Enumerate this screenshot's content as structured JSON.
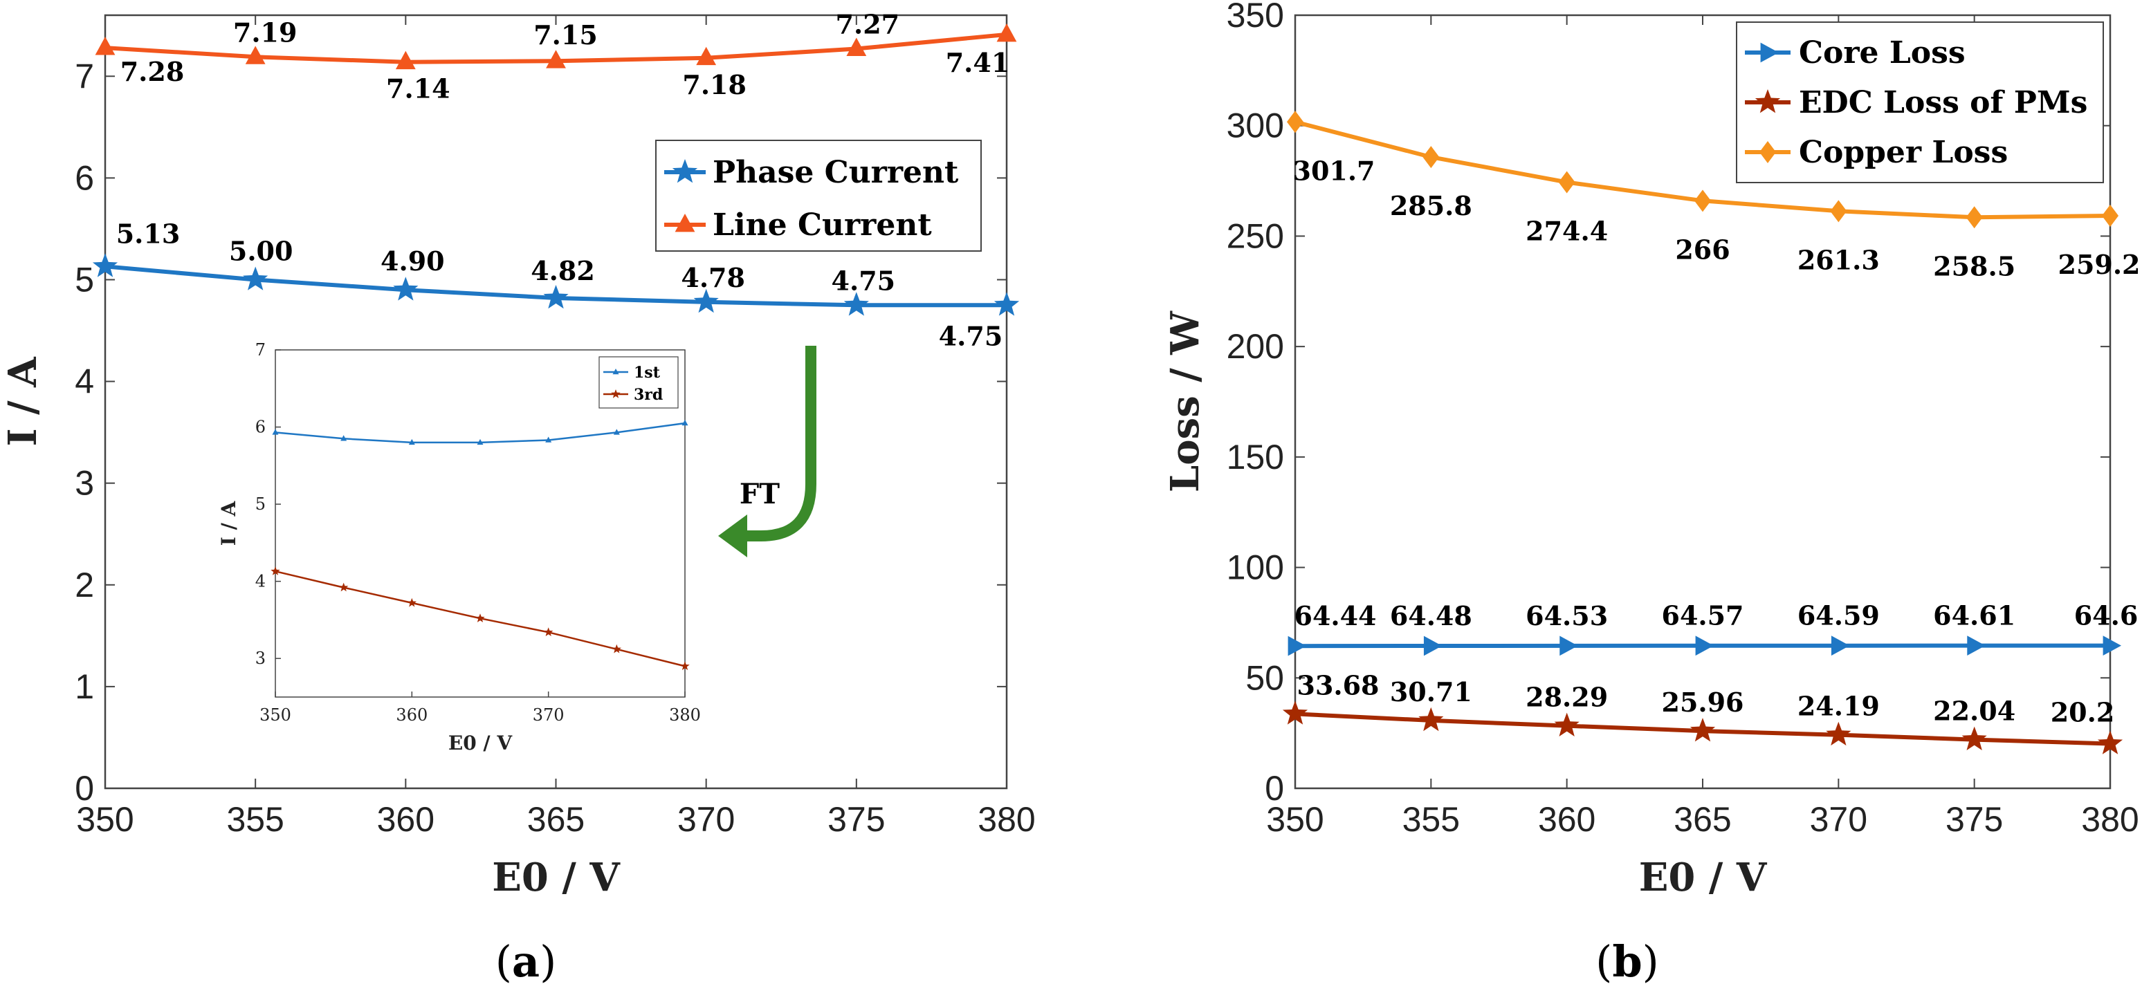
{
  "colors": {
    "blue": "#1f77c4",
    "orange_red": "#f2561d",
    "dark_red": "#a52a00",
    "orange": "#f6931d",
    "green": "#3a8a2a",
    "axis": "#444444"
  },
  "chart_data": [
    {
      "id": "a",
      "type": "line",
      "caption_open": "(",
      "caption_letter": "a",
      "caption_close": ")",
      "xlabel": "E0 / V",
      "ylabel": "I / A",
      "xlim": [
        350,
        380
      ],
      "ylim": [
        0,
        7.6
      ],
      "xticks": [
        350,
        355,
        360,
        365,
        370,
        375,
        380
      ],
      "yticks": [
        0,
        1,
        2,
        3,
        4,
        5,
        6,
        7
      ],
      "legend_position": "right-middle",
      "series": [
        {
          "name": "Phase Current",
          "color": "blue",
          "marker": "star",
          "x": [
            350,
            355,
            360,
            365,
            370,
            375,
            380
          ],
          "values": [
            5.13,
            5.0,
            4.9,
            4.82,
            4.78,
            4.75,
            4.75
          ],
          "labels": [
            "5.13",
            "5.00",
            "4.90",
            "4.82",
            "4.78",
            "4.75",
            "4.75"
          ]
        },
        {
          "name": "Line Current",
          "color": "orange_red",
          "marker": "triangle",
          "x": [
            350,
            355,
            360,
            365,
            370,
            375,
            380
          ],
          "values": [
            7.28,
            7.19,
            7.14,
            7.15,
            7.18,
            7.27,
            7.41
          ],
          "labels": [
            "7.28",
            "7.19",
            "7.14",
            "7.15",
            "7.18",
            "7.27",
            "7.41"
          ]
        }
      ],
      "annotation": "FT",
      "inset": {
        "type": "line",
        "xlabel": "E0 / V",
        "ylabel": "I / A",
        "xlim": [
          350,
          380
        ],
        "ylim": [
          2.5,
          7
        ],
        "xticks": [
          350,
          360,
          370,
          380
        ],
        "yticks": [
          3,
          4,
          5,
          6,
          7
        ],
        "series": [
          {
            "name": "1st",
            "color": "blue",
            "x": [
              350,
              355,
              360,
              365,
              370,
              375,
              380
            ],
            "values": [
              5.93,
              5.85,
              5.8,
              5.8,
              5.83,
              5.93,
              6.05
            ]
          },
          {
            "name": "3rd",
            "color": "dark_red",
            "x": [
              350,
              355,
              360,
              365,
              370,
              375,
              380
            ],
            "values": [
              4.13,
              3.92,
              3.72,
              3.52,
              3.34,
              3.12,
              2.9
            ]
          }
        ]
      }
    },
    {
      "id": "b",
      "type": "line",
      "caption_open": "(",
      "caption_letter": "b",
      "caption_close": ")",
      "xlabel": "E0 / V",
      "ylabel": "Loss / W",
      "xlim": [
        350,
        380
      ],
      "ylim": [
        0,
        350
      ],
      "xticks": [
        350,
        355,
        360,
        365,
        370,
        375,
        380
      ],
      "yticks": [
        0,
        50,
        100,
        150,
        200,
        250,
        300,
        350
      ],
      "legend_position": "top-right",
      "series": [
        {
          "name": "Core Loss",
          "color": "blue",
          "marker": "right-triangle",
          "x": [
            350,
            355,
            360,
            365,
            370,
            375,
            380
          ],
          "values": [
            64.44,
            64.48,
            64.53,
            64.57,
            64.59,
            64.61,
            64.6
          ],
          "labels": [
            "64.44",
            "64.48",
            "64.53",
            "64.57",
            "64.59",
            "64.61",
            "64.6"
          ]
        },
        {
          "name": "EDC Loss of PMs",
          "color": "dark_red",
          "marker": "star",
          "x": [
            350,
            355,
            360,
            365,
            370,
            375,
            380
          ],
          "values": [
            33.68,
            30.71,
            28.29,
            25.96,
            24.19,
            22.04,
            20.2
          ],
          "labels": [
            "33.68",
            "30.71",
            "28.29",
            "25.96",
            "24.19",
            "22.04",
            "20.2"
          ]
        },
        {
          "name": "Copper Loss",
          "color": "orange",
          "marker": "diamond",
          "x": [
            350,
            355,
            360,
            365,
            370,
            375,
            380
          ],
          "values": [
            301.7,
            285.8,
            274.4,
            266,
            261.3,
            258.5,
            259.2
          ],
          "labels": [
            "301.7",
            "285.8",
            "274.4",
            "266",
            "261.3",
            "258.5",
            "259.2"
          ]
        }
      ]
    }
  ]
}
